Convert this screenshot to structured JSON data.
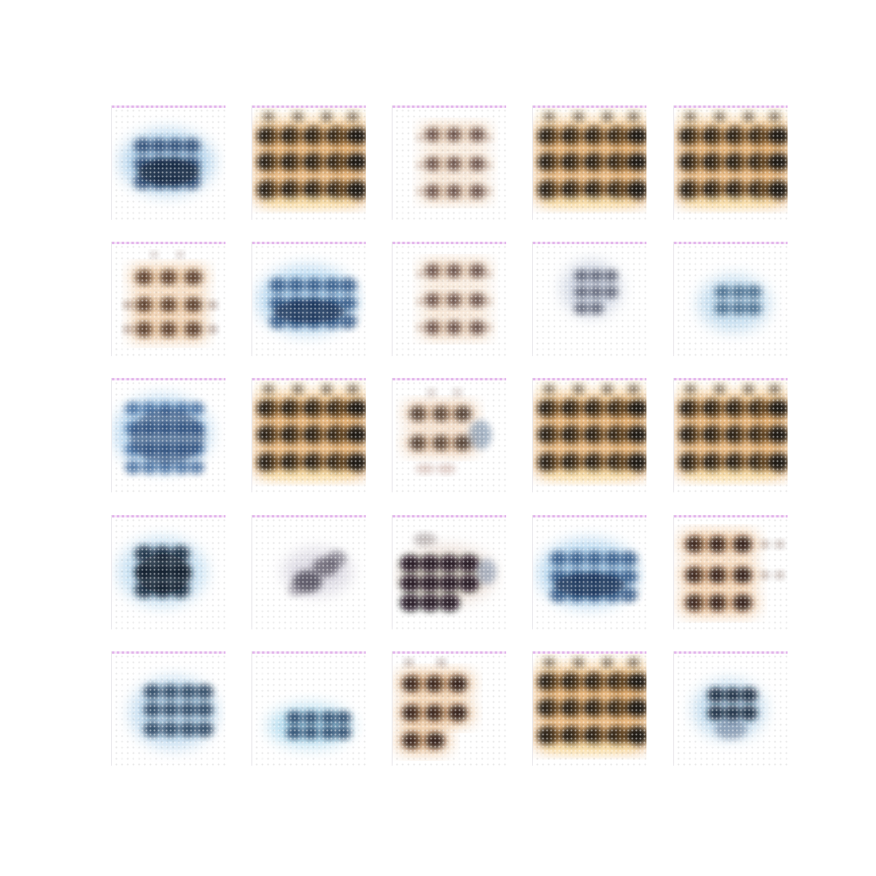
{
  "grid": {
    "rows": 5,
    "cols": 5,
    "tiles": [
      {
        "style": "blue-blob"
      },
      {
        "style": "dark-grid-full"
      },
      {
        "style": "faint-grid"
      },
      {
        "style": "dark-grid-full"
      },
      {
        "style": "dark-grid-full"
      },
      {
        "style": "brown-grid-light"
      },
      {
        "style": "blue-blob-wide"
      },
      {
        "style": "faint-grid"
      },
      {
        "style": "small-gray-blob"
      },
      {
        "style": "small-blue-blob"
      },
      {
        "style": "blue-grid"
      },
      {
        "style": "dark-grid-full"
      },
      {
        "style": "mixed-faint"
      },
      {
        "style": "dark-grid-full"
      },
      {
        "style": "dark-grid-full"
      },
      {
        "style": "blue-blob-dark"
      },
      {
        "style": "small-gray-diagonal"
      },
      {
        "style": "dark-cluster"
      },
      {
        "style": "blue-blob-wide"
      },
      {
        "style": "brown-grid-partial"
      },
      {
        "style": "blue-blob-right"
      },
      {
        "style": "blue-small-low"
      },
      {
        "style": "brown-grid-left"
      },
      {
        "style": "dark-grid-full"
      },
      {
        "style": "small-blue-dark"
      }
    ]
  }
}
